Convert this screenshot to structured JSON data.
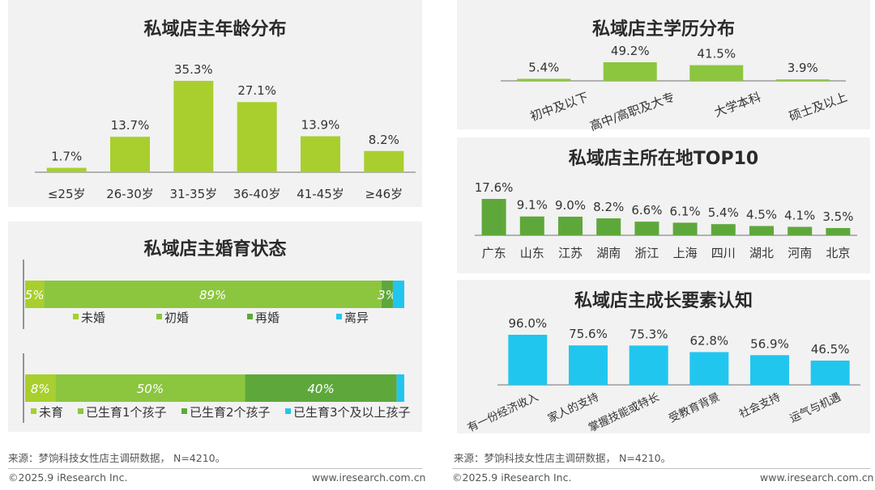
{
  "colors": {
    "accent_green": "#a8cf2e",
    "dark_green": "#5ea83b",
    "mid_green": "#8cc63f",
    "blue": "#21c6ee",
    "panel_bg": "#f2f2f2"
  },
  "chart_data": [
    {
      "id": "age",
      "type": "bar",
      "title": "私域店主年龄分布",
      "categories": [
        "≤25岁",
        "26-30岁",
        "31-35岁",
        "36-40岁",
        "41-45岁",
        "≥46岁"
      ],
      "values": [
        1.7,
        13.7,
        35.3,
        27.1,
        13.9,
        8.2
      ],
      "labels": [
        "1.7%",
        "13.7%",
        "35.3%",
        "27.1%",
        "13.9%",
        "8.2%"
      ],
      "ylim": [
        0,
        35.3
      ]
    },
    {
      "id": "edu",
      "type": "bar",
      "title": "私域店主学历分布",
      "categories": [
        "初中及以下",
        "高中/高职及大专",
        "大学本科",
        "硕士及以上"
      ],
      "values": [
        5.4,
        49.2,
        41.5,
        3.9
      ],
      "labels": [
        "5.4%",
        "49.2%",
        "41.5%",
        "3.9%"
      ],
      "ylim": [
        0,
        49.2
      ]
    },
    {
      "id": "loc",
      "type": "bar",
      "title": "私域店主所在地TOP10",
      "categories": [
        "广东",
        "山东",
        "江苏",
        "湖南",
        "浙江",
        "上海",
        "四川",
        "湖北",
        "河南",
        "北京"
      ],
      "values": [
        17.6,
        9.1,
        9.0,
        8.2,
        6.6,
        6.1,
        5.4,
        4.5,
        4.1,
        3.5
      ],
      "labels": [
        "17.6%",
        "9.1%",
        "9.0%",
        "8.2%",
        "6.6%",
        "6.1%",
        "5.4%",
        "4.5%",
        "4.1%",
        "3.5%"
      ],
      "ylim": [
        0,
        17.6
      ]
    },
    {
      "id": "growth",
      "type": "bar",
      "title": "私域店主成长要素认知",
      "categories": [
        "有一份经济收入",
        "家人的支持",
        "掌握技能或特长",
        "受教育背景",
        "社会支持",
        "运气与机遇"
      ],
      "values": [
        96.0,
        75.6,
        75.3,
        62.8,
        56.9,
        46.5
      ],
      "labels": [
        "96.0%",
        "75.6%",
        "75.3%",
        "62.8%",
        "56.9%",
        "46.5%"
      ],
      "ylim": [
        0,
        96.0
      ]
    },
    {
      "id": "marital",
      "type": "bar",
      "subtype": "stacked-horizontal",
      "title": "私域店主婚育状态",
      "rows": [
        {
          "categories": [
            "未婚",
            "初婚",
            "再婚",
            "离异"
          ],
          "values": [
            5,
            89,
            3,
            3
          ],
          "labels": [
            "5%",
            "89%",
            "3%",
            ""
          ]
        },
        {
          "categories": [
            "未育",
            "已生育1个孩子",
            "已生育2个孩子",
            "已生育3个及以上孩子"
          ],
          "values": [
            8,
            50,
            40,
            2
          ],
          "labels": [
            "8%",
            "50%",
            "40%",
            ""
          ]
        }
      ]
    }
  ],
  "footer": {
    "source": "来源：梦饷科技女性店主调研数据，  N=4210。",
    "copyright": "©2025.9 iResearch Inc.",
    "website": "www.iresearch.com.cn"
  }
}
